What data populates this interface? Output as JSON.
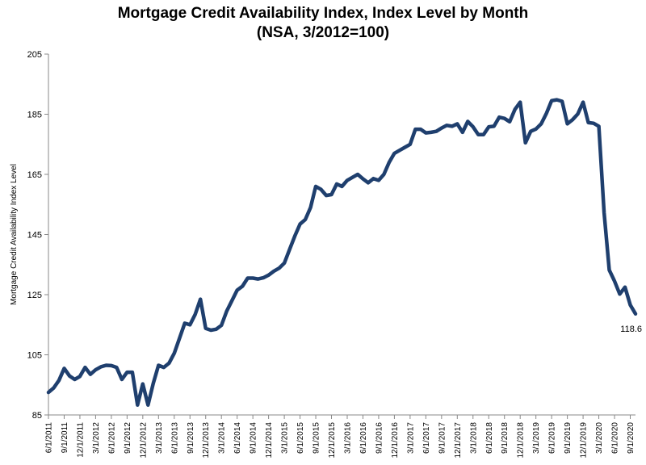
{
  "chart_data": {
    "type": "line",
    "title": "Mortgage Credit Availability Index, Index Level by Month",
    "subtitle": "(NSA, 3/2012=100)",
    "xlabel": "",
    "ylabel": "Mortgage Credit Availability Index Level",
    "ylim": [
      85,
      205
    ],
    "yticks": [
      85,
      105,
      125,
      145,
      165,
      185,
      205
    ],
    "x_tick_labels": [
      "6/1/2011",
      "9/1/2011",
      "12/1/2011",
      "3/1/2012",
      "6/1/2012",
      "9/1/2012",
      "12/1/2012",
      "3/1/2013",
      "6/1/2013",
      "9/1/2013",
      "12/1/2013",
      "3/1/2014",
      "6/1/2014",
      "9/1/2014",
      "12/1/2014",
      "3/1/2015",
      "6/1/2015",
      "9/1/2015",
      "12/1/2015",
      "3/1/2016",
      "6/1/2016",
      "9/1/2016",
      "12/1/2016",
      "3/1/2017",
      "6/1/2017",
      "9/1/2017",
      "12/1/2017",
      "3/1/2018",
      "6/1/2018",
      "9/1/2018",
      "12/1/2018",
      "3/1/2019",
      "6/1/2019",
      "9/1/2019",
      "12/1/2019",
      "3/1/2020",
      "6/1/2020",
      "9/1/2020"
    ],
    "series_color": "#1f3f6e",
    "end_label": "118.6",
    "values": [
      92.5,
      94.0,
      96.5,
      100.5,
      98.0,
      96.8,
      97.8,
      100.8,
      98.5,
      100.0,
      101.0,
      101.5,
      101.4,
      100.8,
      96.8,
      99.2,
      99.2,
      88.3,
      95.3,
      88.3,
      95.5,
      101.5,
      100.8,
      102.2,
      105.5,
      110.5,
      115.5,
      115.0,
      118.5,
      123.5,
      113.8,
      113.2,
      113.5,
      114.8,
      119.5,
      123.0,
      126.5,
      127.8,
      130.5,
      130.5,
      130.2,
      130.6,
      131.5,
      132.8,
      133.8,
      135.5,
      140.0,
      144.5,
      148.5,
      150.0,
      154.0,
      161.0,
      160.0,
      158.0,
      158.3,
      161.8,
      161.0,
      163.0,
      164.0,
      165.0,
      163.5,
      162.2,
      163.6,
      163.0,
      165.0,
      169.0,
      172.0,
      173.0,
      174.0,
      175.0,
      180.0,
      180.0,
      178.8,
      179.0,
      179.3,
      180.4,
      181.3,
      181.0,
      181.8,
      179.0,
      182.6,
      180.8,
      178.2,
      178.2,
      180.8,
      181.0,
      184.0,
      183.6,
      182.5,
      186.6,
      189.0,
      175.5,
      179.3,
      180.1,
      181.8,
      185.3,
      189.5,
      189.8,
      189.3,
      181.8,
      183.2,
      185.1,
      189.0,
      182.2,
      182.0,
      181.0,
      152.3,
      133.2,
      129.5,
      125.2,
      127.5,
      121.6,
      118.6
    ]
  }
}
